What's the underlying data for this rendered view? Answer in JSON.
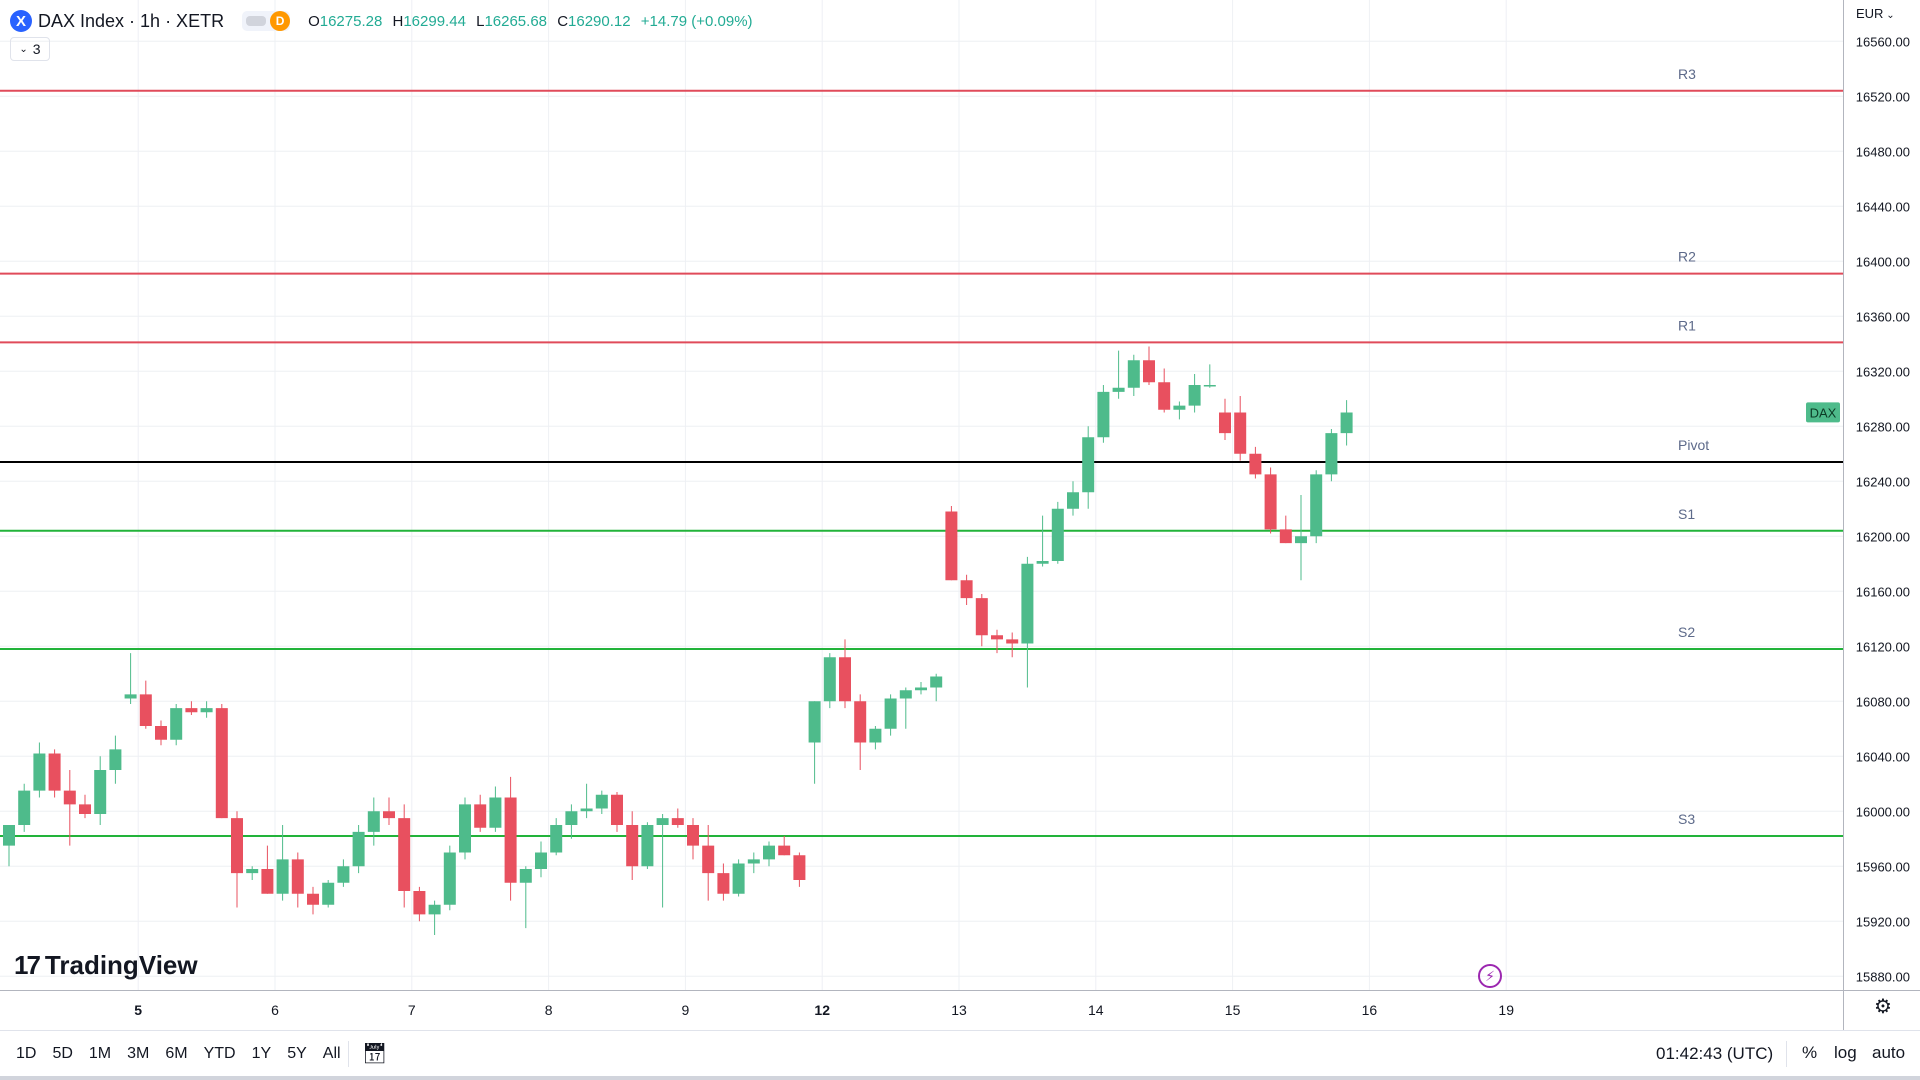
{
  "header": {
    "symbol_icon": "X",
    "title": "DAX Index · 1h · XETR",
    "market_status": "D",
    "ohlc": {
      "o_label": "O",
      "o": "16275.28",
      "h_label": "H",
      "h": "16299.44",
      "l_label": "L",
      "l": "16265.68",
      "c_label": "C",
      "c": "16290.12",
      "change": "+14.79 (+0.09%)"
    },
    "indicator_count": "3",
    "currency": "EUR"
  },
  "chart_data": {
    "type": "candlestick",
    "symbol_label": "DAX",
    "last_price": 16290.12,
    "ylim": [
      15870,
      16590
    ],
    "yticks": [
      "16560.00",
      "16520.00",
      "16480.00",
      "16440.00",
      "16400.00",
      "16360.00",
      "16320.00",
      "16280.00",
      "16240.00",
      "16200.00",
      "16160.00",
      "16120.00",
      "16080.00",
      "16040.00",
      "16000.00",
      "15960.00",
      "15920.00",
      "15880.00"
    ],
    "xticks": [
      {
        "label": "5",
        "index": 8.5,
        "bold": true
      },
      {
        "label": "6",
        "index": 17.5,
        "bold": false
      },
      {
        "label": "7",
        "index": 26.5,
        "bold": false
      },
      {
        "label": "8",
        "index": 35.5,
        "bold": false
      },
      {
        "label": "9",
        "index": 44.5,
        "bold": false
      },
      {
        "label": "12",
        "index": 53.5,
        "bold": true
      },
      {
        "label": "13",
        "index": 62.5,
        "bold": false
      },
      {
        "label": "14",
        "index": 71.5,
        "bold": false
      },
      {
        "label": "15",
        "index": 80.5,
        "bold": false
      },
      {
        "label": "16",
        "index": 89.5,
        "bold": false
      },
      {
        "label": "19",
        "index": 98.5,
        "bold": false
      }
    ],
    "levels": [
      {
        "name": "R3",
        "value": 16524,
        "color": "#e04b5a"
      },
      {
        "name": "R2",
        "value": 16391,
        "color": "#e04b5a"
      },
      {
        "name": "R1",
        "value": 16341,
        "color": "#e04b5a"
      },
      {
        "name": "Pivot",
        "value": 16254,
        "color": "#000000"
      },
      {
        "name": "S1",
        "value": 16204,
        "color": "#22b33a"
      },
      {
        "name": "S2",
        "value": 16118,
        "color": "#22b33a"
      },
      {
        "name": "S3",
        "value": 15982,
        "color": "#22b33a"
      }
    ],
    "candles": [
      [
        15975,
        15990,
        15960,
        15990
      ],
      [
        15990,
        16020,
        15985,
        16015
      ],
      [
        16015,
        16050,
        16010,
        16042
      ],
      [
        16042,
        16045,
        16010,
        16015
      ],
      [
        16015,
        16030,
        15975,
        16005
      ],
      [
        16005,
        16012,
        15995,
        15998
      ],
      [
        15998,
        16040,
        15990,
        16030
      ],
      [
        16030,
        16055,
        16020,
        16045
      ],
      [
        16082,
        16115,
        16078,
        16085
      ],
      [
        16085,
        16095,
        16060,
        16062
      ],
      [
        16062,
        16066,
        16048,
        16052
      ],
      [
        16052,
        16078,
        16048,
        16075
      ],
      [
        16075,
        16080,
        16070,
        16072
      ],
      [
        16072,
        16080,
        16068,
        16075
      ],
      [
        16075,
        16078,
        15995,
        15995
      ],
      [
        15995,
        16000,
        15930,
        15955
      ],
      [
        15955,
        15960,
        15950,
        15958
      ],
      [
        15958,
        15975,
        15940,
        15940
      ],
      [
        15940,
        15990,
        15935,
        15965
      ],
      [
        15965,
        15970,
        15930,
        15940
      ],
      [
        15940,
        15945,
        15925,
        15932
      ],
      [
        15932,
        15950,
        15930,
        15948
      ],
      [
        15948,
        15965,
        15945,
        15960
      ],
      [
        15960,
        15990,
        15955,
        15985
      ],
      [
        15985,
        16010,
        15975,
        16000
      ],
      [
        16000,
        16010,
        15990,
        15995
      ],
      [
        15995,
        16005,
        15930,
        15942
      ],
      [
        15942,
        15945,
        15920,
        15925
      ],
      [
        15925,
        15935,
        15910,
        15932
      ],
      [
        15932,
        15975,
        15928,
        15970
      ],
      [
        15970,
        16010,
        15965,
        16005
      ],
      [
        16005,
        16012,
        15985,
        15988
      ],
      [
        15988,
        16018,
        15985,
        16010
      ],
      [
        16010,
        16025,
        15935,
        15948
      ],
      [
        15948,
        15960,
        15915,
        15958
      ],
      [
        15958,
        15978,
        15952,
        15970
      ],
      [
        15970,
        15995,
        15968,
        15990
      ],
      [
        15990,
        16005,
        15980,
        16000
      ],
      [
        16000,
        16020,
        15995,
        16002
      ],
      [
        16002,
        16015,
        15998,
        16012
      ],
      [
        16012,
        16014,
        15985,
        15990
      ],
      [
        15990,
        16000,
        15950,
        15960
      ],
      [
        15960,
        15992,
        15958,
        15990
      ],
      [
        15990,
        15998,
        15930,
        15995
      ],
      [
        15995,
        16002,
        15988,
        15990
      ],
      [
        15990,
        15995,
        15965,
        15975
      ],
      [
        15975,
        15990,
        15935,
        15955
      ],
      [
        15955,
        15962,
        15935,
        15940
      ],
      [
        15940,
        15965,
        15938,
        15962
      ],
      [
        15962,
        15970,
        15955,
        15965
      ],
      [
        15965,
        15978,
        15960,
        15975
      ],
      [
        15975,
        15982,
        15968,
        15968
      ],
      [
        15968,
        15970,
        15945,
        15950
      ],
      [
        16050,
        16080,
        16020,
        16080
      ],
      [
        16080,
        16115,
        16075,
        16112
      ],
      [
        16112,
        16125,
        16075,
        16080
      ],
      [
        16080,
        16085,
        16030,
        16050
      ],
      [
        16050,
        16062,
        16045,
        16060
      ],
      [
        16060,
        16085,
        16055,
        16082
      ],
      [
        16082,
        16090,
        16060,
        16088
      ],
      [
        16088,
        16094,
        16085,
        16090
      ],
      [
        16090,
        16100,
        16080,
        16098
      ],
      [
        16218,
        16222,
        16168,
        16168
      ],
      [
        16168,
        16172,
        16150,
        16155
      ],
      [
        16155,
        16158,
        16120,
        16128
      ],
      [
        16128,
        16132,
        16115,
        16125
      ],
      [
        16125,
        16130,
        16112,
        16122
      ],
      [
        16122,
        16185,
        16090,
        16180
      ],
      [
        16180,
        16215,
        16178,
        16182
      ],
      [
        16182,
        16225,
        16180,
        16220
      ],
      [
        16220,
        16240,
        16215,
        16232
      ],
      [
        16232,
        16280,
        16220,
        16272
      ],
      [
        16272,
        16310,
        16268,
        16305
      ],
      [
        16305,
        16335,
        16300,
        16308
      ],
      [
        16308,
        16332,
        16302,
        16328
      ],
      [
        16328,
        16338,
        16310,
        16312
      ],
      [
        16312,
        16322,
        16290,
        16292
      ],
      [
        16292,
        16298,
        16285,
        16295
      ],
      [
        16295,
        16318,
        16290,
        16310
      ],
      [
        16310,
        16325,
        16308,
        16310
      ],
      [
        16290,
        16300,
        16270,
        16275
      ],
      [
        16290,
        16302,
        16255,
        16260
      ],
      [
        16260,
        16265,
        16242,
        16245
      ],
      [
        16245,
        16250,
        16202,
        16205
      ],
      [
        16205,
        16215,
        16195,
        16195
      ],
      [
        16195,
        16230,
        16168,
        16200
      ],
      [
        16200,
        16248,
        16195,
        16245
      ],
      [
        16245,
        16278,
        16240,
        16275
      ],
      [
        16275,
        16299,
        16266,
        16290
      ]
    ]
  },
  "branding": {
    "logo": "TradingView"
  },
  "bottom": {
    "ranges": [
      "1D",
      "5D",
      "1M",
      "3M",
      "6M",
      "YTD",
      "1Y",
      "5Y",
      "All"
    ],
    "clock": "01:42:43 (UTC)",
    "percent": "%",
    "log": "log",
    "auto": "auto"
  },
  "colors": {
    "up": "#4ebb8b",
    "down": "#e8505f",
    "grid": "#eef0f4",
    "text": "#131722",
    "accent": "#2962ff"
  }
}
